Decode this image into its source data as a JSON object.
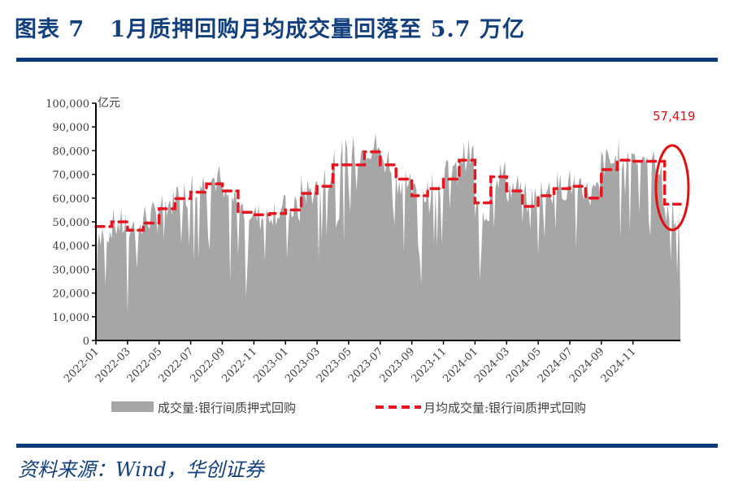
{
  "header": {
    "title": "图表 7   1月质押回购月均成交量回落至 5.7 万亿"
  },
  "footer": {
    "source": "资料来源：Wind，华创证券"
  },
  "colors": {
    "brand_blue": "#0d3b7a",
    "area_gray": "#a6a6a6",
    "avg_red": "#e8141e",
    "highlight_red": "#e01010"
  },
  "chart_data": {
    "type": "area",
    "title": "1月质押回购月均成交量回落至 5.7 万亿",
    "ylabel": "亿元",
    "xlabel": "",
    "ylim": [
      0,
      100000
    ],
    "yticks": [
      0,
      10000,
      20000,
      30000,
      40000,
      50000,
      60000,
      70000,
      80000,
      90000,
      100000
    ],
    "ytick_labels": [
      "0",
      "10,000",
      "20,000",
      "30,000",
      "40,000",
      "50,000",
      "60,000",
      "70,000",
      "80,000",
      "90,000",
      "100,000"
    ],
    "xtick_labels": [
      "2022-01",
      "2022-03",
      "2022-05",
      "2022-07",
      "2022-09",
      "2022-11",
      "2023-01",
      "2023-03",
      "2023-05",
      "2023-07",
      "2023-09",
      "2023-11",
      "2024-01",
      "2024-03",
      "2024-05",
      "2024-07",
      "2024-09",
      "2024-11"
    ],
    "grid": false,
    "legend_position": "bottom",
    "legend": [
      "成交量:银行间质押式回购",
      "月均成交量:银行间质押式回购"
    ],
    "annotation": {
      "text": "57,419",
      "target": "2025-01 monthly average",
      "shape": "red ellipse"
    },
    "categories": [
      "2022-01",
      "2022-02",
      "2022-03",
      "2022-04",
      "2022-05",
      "2022-06",
      "2022-07",
      "2022-08",
      "2022-09",
      "2022-10",
      "2022-11",
      "2022-12",
      "2023-01",
      "2023-02",
      "2023-03",
      "2023-04",
      "2023-05",
      "2023-06",
      "2023-07",
      "2023-08",
      "2023-09",
      "2023-10",
      "2023-11",
      "2023-12",
      "2024-01",
      "2024-02",
      "2024-03",
      "2024-04",
      "2024-05",
      "2024-06",
      "2024-07",
      "2024-08",
      "2024-09",
      "2024-10",
      "2024-11",
      "2024-12",
      "2025-01"
    ],
    "series": [
      {
        "name": "成交量:银行间质押式回购",
        "kind": "daily area (approximate monthly range)",
        "values": [
          46000,
          49000,
          47000,
          52000,
          58000,
          62000,
          66000,
          68000,
          60000,
          55000,
          52000,
          55000,
          55000,
          63000,
          68000,
          78000,
          80000,
          82000,
          76000,
          68000,
          62000,
          66000,
          70000,
          78000,
          55000,
          70000,
          64000,
          60000,
          63000,
          65000,
          66000,
          62000,
          75000,
          79000,
          78000,
          74000,
          55000
        ]
      },
      {
        "name": "月均成交量:银行间质押式回购",
        "values": [
          48000,
          50000,
          46500,
          49500,
          55500,
          59800,
          62500,
          66000,
          63000,
          54000,
          53000,
          53500,
          55000,
          62000,
          65000,
          74000,
          74000,
          79500,
          74000,
          68000,
          61000,
          64000,
          68000,
          76000,
          58000,
          69000,
          63000,
          56500,
          61000,
          64000,
          65000,
          60000,
          72000,
          76000,
          75500,
          75500,
          57419
        ]
      }
    ]
  }
}
